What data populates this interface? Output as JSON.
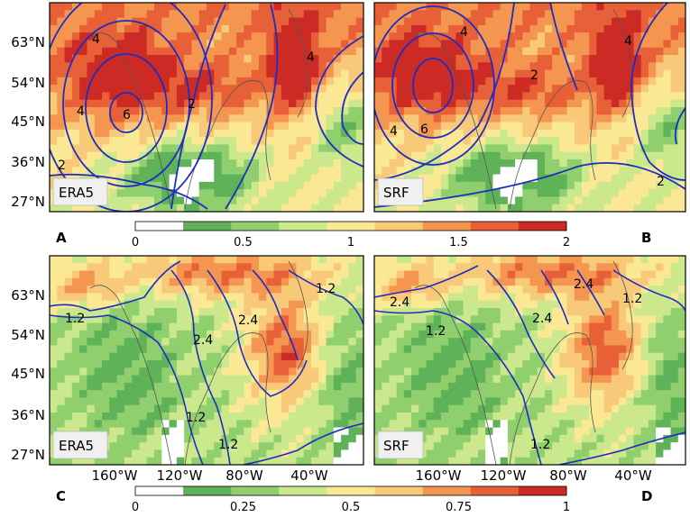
{
  "lat_ticks": [
    "63°N",
    "54°N",
    "45°N",
    "36°N",
    "27°N"
  ],
  "lon_ticks": [
    "160°W",
    "120°W",
    "80°W",
    "40°W"
  ],
  "colors": {
    "ramp": [
      "#ffffff",
      "#5fb257",
      "#8fcf6e",
      "#cbe88c",
      "#fbe894",
      "#f9c97a",
      "#f59650",
      "#e86038",
      "#cc2a24"
    ],
    "contour": "#1e2dc0",
    "coast": "#555555"
  },
  "colorbars": [
    {
      "ticks": [
        "0",
        "0.5",
        "1",
        "1.5",
        "2"
      ],
      "min": 0,
      "max": 2
    },
    {
      "ticks": [
        "0",
        "0.25",
        "0.5",
        "0.75",
        "1"
      ],
      "min": 0,
      "max": 1
    }
  ],
  "panels": [
    {
      "id": "A",
      "label": "A",
      "dataset": "ERA5",
      "contour_labels": [
        "4",
        "4",
        "4",
        "6",
        "2",
        "2"
      ]
    },
    {
      "id": "B",
      "label": "B",
      "dataset": "SRF",
      "contour_labels": [
        "4",
        "4",
        "2",
        "6",
        "4",
        "2"
      ]
    },
    {
      "id": "C",
      "label": "C",
      "dataset": "ERA5",
      "contour_labels": [
        "1.2",
        "2.4",
        "1.2",
        "2.4",
        "1.2",
        "1.2"
      ]
    },
    {
      "id": "D",
      "label": "D",
      "dataset": "SRF",
      "contour_labels": [
        "2.4",
        "1.2",
        "2.4",
        "2.4",
        "1.2",
        "1.2"
      ]
    }
  ]
}
